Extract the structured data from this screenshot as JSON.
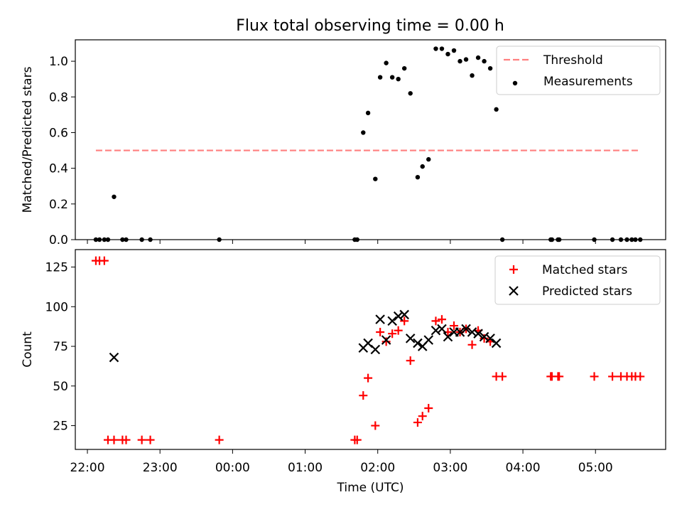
{
  "figure": {
    "title": "Flux total observing time = 0.00 h"
  },
  "chart_data": [
    {
      "type": "scatter",
      "panel": "top",
      "title": "Flux total observing time = 0.00 h",
      "xlabel": "",
      "ylabel": "Matched/Predicted stars",
      "xlim": [
        "21:50",
        "05:58"
      ],
      "ylim": [
        0,
        1.12
      ],
      "yticks": [
        0.0,
        0.2,
        0.4,
        0.6,
        0.8,
        1.0
      ],
      "ytick_labels": [
        "0.0",
        "0.2",
        "0.4",
        "0.6",
        "0.8",
        "1.0"
      ],
      "grid": false,
      "legend_position": "top-right",
      "series": [
        {
          "name": "Threshold",
          "style": "dashed-line",
          "color": "#ff7f7f",
          "x": [
            "22:07",
            "05:37"
          ],
          "y": [
            0.5,
            0.5
          ]
        },
        {
          "name": "Measurements",
          "style": "dot",
          "color": "#000000",
          "x": [
            "22:07",
            "22:10",
            "22:14",
            "22:17",
            "22:22",
            "22:29",
            "22:32",
            "22:45",
            "22:52",
            "23:49",
            "01:41",
            "01:43",
            "01:48",
            "01:52",
            "01:58",
            "02:02",
            "02:07",
            "02:12",
            "02:17",
            "02:22",
            "02:27",
            "02:33",
            "02:37",
            "02:42",
            "02:48",
            "02:53",
            "02:58",
            "03:03",
            "03:08",
            "03:13",
            "03:18",
            "03:23",
            "03:28",
            "03:33",
            "03:38",
            "03:43",
            "04:23",
            "04:24",
            "04:29",
            "04:30",
            "04:59",
            "05:14",
            "05:21",
            "05:26",
            "05:30",
            "05:33",
            "05:37"
          ],
          "y": [
            0,
            0,
            0,
            0,
            0.24,
            0,
            0,
            0,
            0,
            0,
            0,
            0,
            0.6,
            0.71,
            0.34,
            0.91,
            0.99,
            0.91,
            0.9,
            0.96,
            0.82,
            0.35,
            0.41,
            0.45,
            1.07,
            1.07,
            1.04,
            1.06,
            1.0,
            1.01,
            0.92,
            1.02,
            1.0,
            0.96,
            0.73,
            0,
            0,
            0,
            0,
            0,
            0,
            0,
            0,
            0,
            0,
            0,
            0
          ]
        }
      ]
    },
    {
      "type": "scatter",
      "panel": "bottom",
      "title": "",
      "xlabel": "Time (UTC)",
      "ylabel": "Count",
      "xlim": [
        "21:50",
        "05:58"
      ],
      "ylim": [
        10,
        136
      ],
      "xticks": [
        "22:00",
        "23:00",
        "00:00",
        "01:00",
        "02:00",
        "03:00",
        "04:00",
        "05:00"
      ],
      "yticks": [
        25,
        50,
        75,
        100,
        125
      ],
      "ytick_labels": [
        "25",
        "50",
        "75",
        "100",
        "125"
      ],
      "grid": false,
      "legend_position": "top-right",
      "series": [
        {
          "name": "Matched stars",
          "style": "plus",
          "color": "#ff0000",
          "x": [
            "22:07",
            "22:10",
            "22:14",
            "22:17",
            "22:22",
            "22:29",
            "22:32",
            "22:45",
            "22:52",
            "23:49",
            "01:41",
            "01:43",
            "01:48",
            "01:52",
            "01:58",
            "02:02",
            "02:07",
            "02:12",
            "02:17",
            "02:22",
            "02:27",
            "02:33",
            "02:37",
            "02:42",
            "02:48",
            "02:53",
            "02:58",
            "03:03",
            "03:08",
            "03:13",
            "03:18",
            "03:23",
            "03:28",
            "03:33",
            "03:38",
            "03:43",
            "04:23",
            "04:24",
            "04:29",
            "04:30",
            "04:59",
            "05:14",
            "05:21",
            "05:26",
            "05:30",
            "05:33",
            "05:37"
          ],
          "y": [
            129,
            129,
            129,
            16,
            16,
            16,
            16,
            16,
            16,
            16,
            16,
            16,
            44,
            55,
            25,
            84,
            78,
            83,
            85,
            91,
            66,
            27,
            31,
            36,
            91,
            92,
            84,
            88,
            84,
            86,
            76,
            85,
            80,
            78,
            56,
            56,
            56,
            56,
            56,
            56,
            56,
            56,
            56,
            56,
            56,
            56,
            56
          ]
        },
        {
          "name": "Predicted stars",
          "style": "x",
          "color": "#000000",
          "x": [
            "22:22",
            "01:48",
            "01:52",
            "01:58",
            "02:02",
            "02:07",
            "02:12",
            "02:17",
            "02:22",
            "02:27",
            "02:33",
            "02:37",
            "02:42",
            "02:48",
            "02:53",
            "02:58",
            "03:03",
            "03:08",
            "03:13",
            "03:18",
            "03:23",
            "03:28",
            "03:33",
            "03:38"
          ],
          "y": [
            68,
            74,
            77,
            73,
            92,
            79,
            91,
            94,
            95,
            80,
            77,
            75,
            79,
            85,
            86,
            81,
            84,
            84,
            86,
            84,
            83,
            81,
            80,
            77
          ]
        }
      ]
    }
  ]
}
